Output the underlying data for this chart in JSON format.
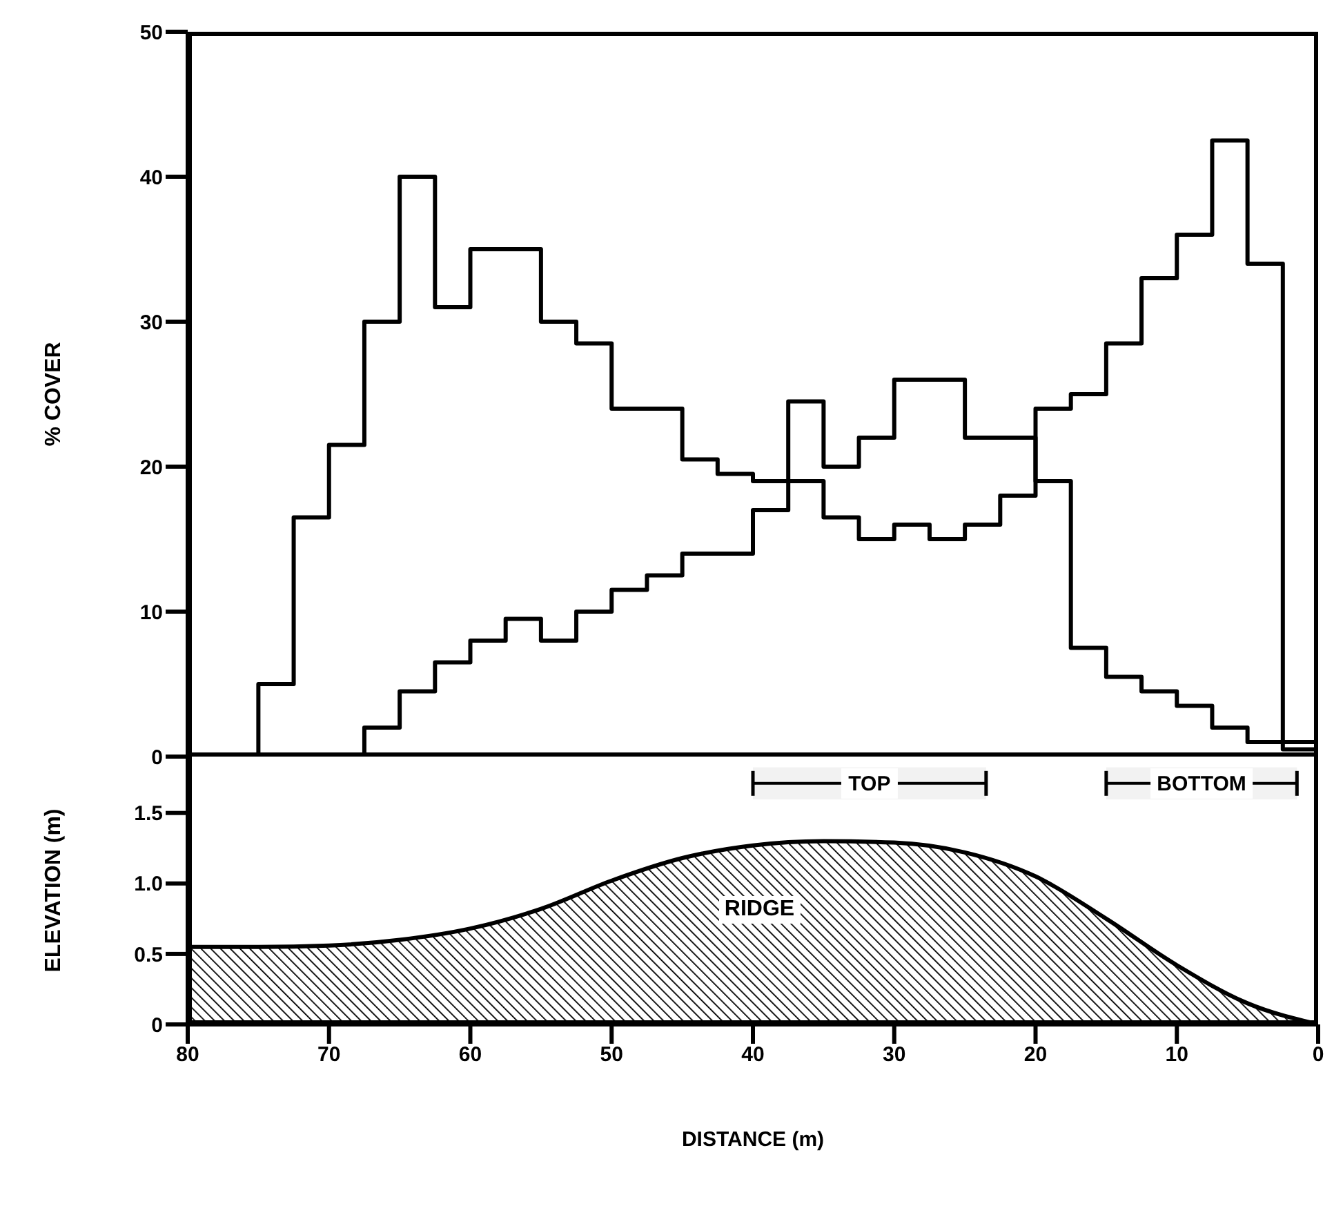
{
  "chart_data": [
    {
      "type": "step",
      "ylabel": "% COVER",
      "xlim": [
        80,
        0
      ],
      "ylim": [
        0,
        50
      ],
      "yticks": [
        0,
        10,
        20,
        30,
        40,
        50
      ],
      "tick_labels": "y",
      "series": [
        {
          "color": "#000000",
          "x": [
            75,
            72.5,
            70,
            67.5,
            65,
            62.5,
            60,
            57.5,
            55,
            52.5,
            50,
            47.5,
            45,
            42.5,
            40,
            37.5,
            35,
            32.5,
            30,
            27.5,
            25,
            22.5,
            20,
            17.5,
            15,
            12.5,
            10,
            7.5,
            5,
            2.5,
            0
          ],
          "values": [
            0,
            5,
            16.5,
            21.5,
            30,
            40,
            31,
            35,
            35,
            30,
            28.5,
            24,
            24,
            20.5,
            19.5,
            19,
            19,
            16.5,
            15,
            16,
            15,
            16,
            18,
            24,
            25,
            28.5,
            33,
            36,
            42.5,
            34,
            1
          ]
        },
        {
          "color": "#000000",
          "x": [
            67.5,
            65,
            62.5,
            60,
            57.5,
            55,
            52.5,
            50,
            47.5,
            45,
            42.5,
            40,
            37.5,
            35,
            32.5,
            30,
            27.5,
            25,
            22.5,
            20,
            17.5,
            15,
            12.5,
            10,
            7.5,
            5,
            2.5,
            0
          ],
          "values": [
            0,
            2,
            4.5,
            6.5,
            8,
            9.5,
            8,
            10,
            11.5,
            12.5,
            14,
            14,
            17,
            24.5,
            20,
            22,
            26,
            26,
            22,
            22,
            19,
            7.5,
            5.5,
            4.5,
            3.5,
            2,
            1,
            0.5
          ]
        }
      ]
    },
    {
      "type": "area",
      "xlabel": "DISTANCE (m)",
      "ylabel": "ELEVATION (m)",
      "x": [
        80,
        75,
        70,
        65,
        60,
        55,
        50,
        45,
        40,
        35,
        30,
        25,
        20,
        15,
        10,
        5,
        0
      ],
      "values": [
        0.55,
        0.55,
        0.56,
        0.6,
        0.68,
        0.82,
        1.02,
        1.18,
        1.27,
        1.3,
        1.29,
        1.22,
        1.05,
        0.75,
        0.42,
        0.15,
        0
      ],
      "color": "#000000",
      "xlim": [
        80,
        0
      ],
      "xticks": [
        80,
        70,
        60,
        50,
        40,
        30,
        20,
        10,
        0
      ],
      "ylim": [
        0,
        1.9
      ],
      "yticks": [
        0,
        {
          "value": 0.5,
          "label": "0.5"
        },
        {
          "value": 1,
          "label": "1.0"
        },
        1.5
      ],
      "bands": [
        {
          "axis": "x",
          "from": 40,
          "to": 23.5,
          "label": "TOP"
        },
        {
          "axis": "x",
          "from": 15,
          "to": 1.5,
          "label": "BOTTOM"
        }
      ],
      "annotations": [
        "RIDGE"
      ]
    }
  ]
}
